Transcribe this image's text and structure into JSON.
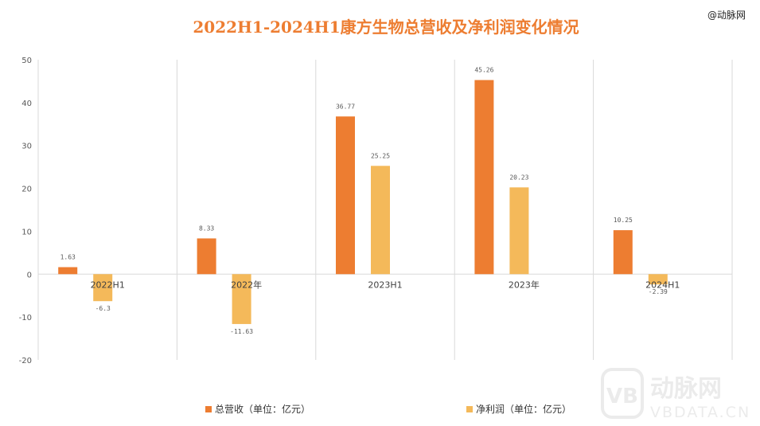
{
  "title": "2022H1-2024H1康方生物总营收及净利润变化情况",
  "source": "@动脉网",
  "watermark": {
    "brand": "动脉网",
    "site": "VBDATA.CN"
  },
  "chart_data": {
    "type": "bar",
    "categories": [
      "2022H1",
      "2022年",
      "2023H1",
      "2023年",
      "2024H1"
    ],
    "series": [
      {
        "name": "总营收（单位：亿元）",
        "color": "#ED7D31",
        "values": [
          1.63,
          8.33,
          36.77,
          45.26,
          10.25
        ],
        "labels": [
          "1.63",
          "8.33",
          "36.77",
          "45.26",
          "10.25"
        ]
      },
      {
        "name": "净利润（单位：亿元）",
        "color": "#F4B95A",
        "values": [
          -6.3,
          -11.63,
          25.25,
          20.23,
          -2.39
        ],
        "labels": [
          "-6.3",
          "-11.63",
          "25.25",
          "20.23",
          "-2.39"
        ]
      }
    ],
    "ylim": [
      -20,
      50
    ],
    "yticks": [
      50,
      40,
      30,
      20,
      10,
      0,
      -10,
      -20
    ],
    "grid": "vertical category separators",
    "legend": "bottom"
  }
}
